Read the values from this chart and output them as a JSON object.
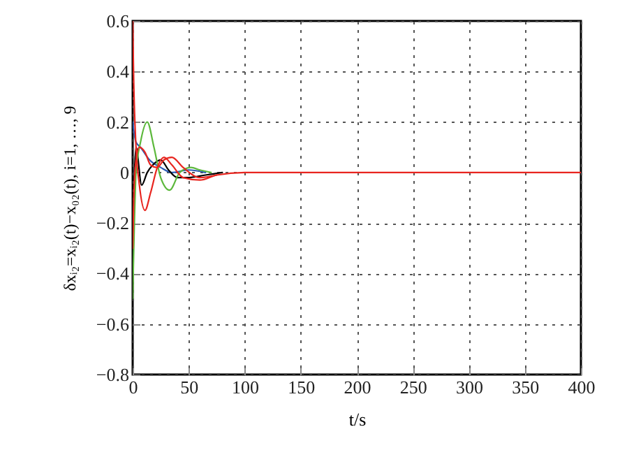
{
  "chart_data": {
    "type": "line",
    "xlabel": "t/s",
    "ylabel": "δxᵢ₂=xᵢ₂(t)−x₀₂(t), i=1, …, 9",
    "xlim": [
      0,
      400
    ],
    "xticks": [
      0,
      50,
      100,
      150,
      200,
      250,
      300,
      350,
      400
    ],
    "ylim": [
      -0.8,
      0.6
    ],
    "yticks": [
      -0.8,
      -0.6,
      -0.4,
      -0.2,
      0,
      0.2,
      0.4,
      0.6
    ],
    "grid": true,
    "line_style": "solid",
    "marker": "none",
    "series": [
      {
        "color": "#2a5bb5",
        "x": [
          0,
          3,
          7,
          15,
          25,
          35,
          50,
          65
        ],
        "values": [
          0.2,
          0.12,
          0.1,
          0.05,
          0.02,
          0.0,
          0.01,
          0.0
        ]
      },
      {
        "color": "#000000",
        "x": [
          0,
          1,
          3,
          8,
          13,
          18,
          25,
          32,
          40,
          50,
          65,
          80
        ],
        "values": [
          -0.5,
          -0.1,
          0.1,
          -0.05,
          0.0,
          0.03,
          0.05,
          0.01,
          -0.02,
          -0.02,
          -0.01,
          0.0
        ]
      },
      {
        "color": "#5cb83c",
        "x": [
          0,
          1,
          3,
          7,
          13,
          19,
          25,
          33,
          42,
          52,
          60,
          70
        ],
        "values": [
          -0.5,
          -0.3,
          0.0,
          0.12,
          0.2,
          0.1,
          -0.02,
          -0.07,
          0.0,
          0.02,
          0.01,
          0.0
        ]
      },
      {
        "color": "#e8251f",
        "x": [
          0,
          1,
          3,
          6,
          11,
          16,
          22,
          28,
          35,
          45,
          60,
          75
        ],
        "values": [
          -0.3,
          -0.1,
          0.05,
          0.1,
          0.08,
          0.03,
          0.02,
          0.05,
          0.06,
          0.02,
          -0.02,
          -0.01
        ]
      },
      {
        "color": "#e8251f",
        "x": [
          0,
          1,
          3,
          6,
          11,
          16,
          22,
          28,
          35,
          45,
          60,
          75,
          100,
          150,
          400
        ],
        "values": [
          0.6,
          0.35,
          0.1,
          -0.05,
          -0.15,
          -0.08,
          0.02,
          0.06,
          0.03,
          -0.02,
          -0.03,
          -0.01,
          0.0,
          0.0,
          0.0
        ]
      }
    ]
  }
}
